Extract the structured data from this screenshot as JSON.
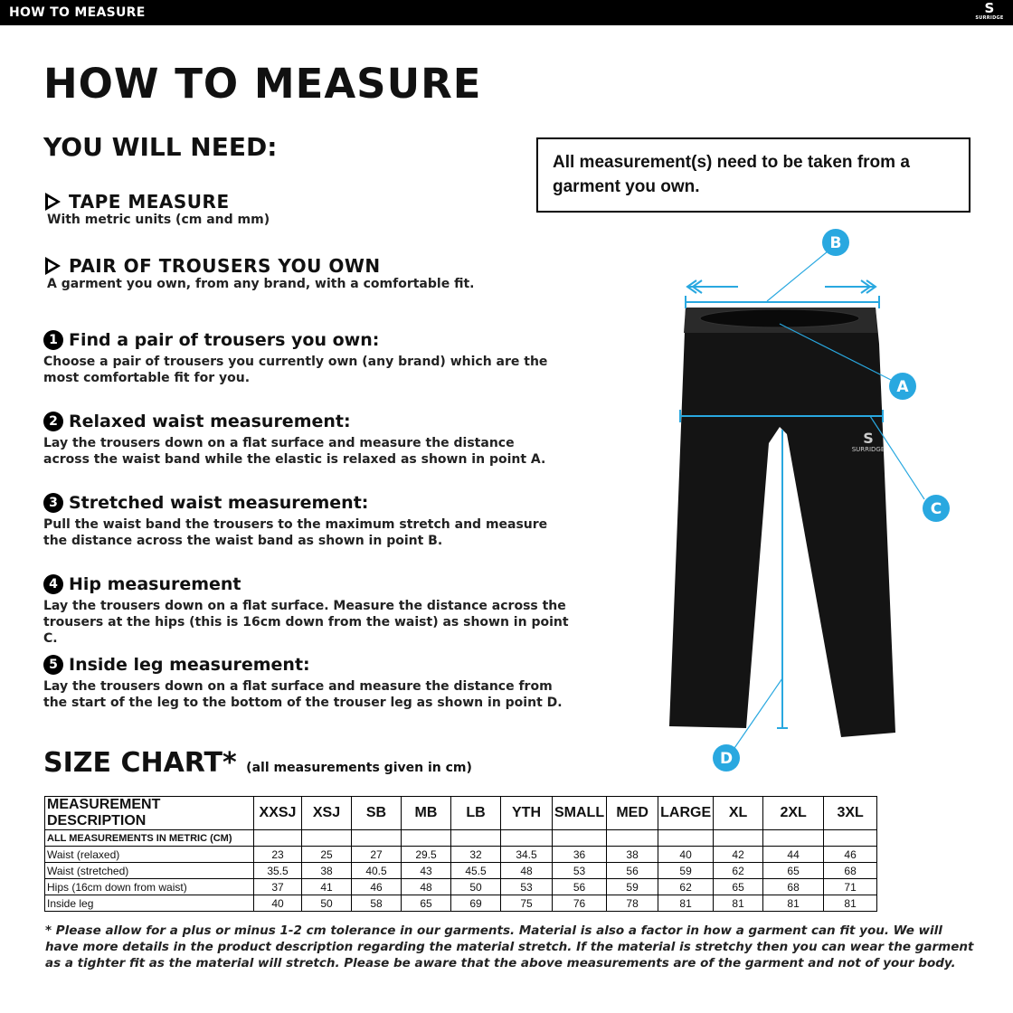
{
  "header": {
    "title": "HOW TO MEASURE",
    "logo_text": "SURRIDGE"
  },
  "page_title": "HOW TO MEASURE",
  "you_will_need": {
    "heading": "YOU WILL NEED:",
    "items": [
      {
        "title": "TAPE MEASURE",
        "sub": "With metric units (cm and mm)"
      },
      {
        "title": "PAIR OF TROUSERS YOU OWN",
        "sub": "A garment you own, from any brand, with a comfortable fit."
      }
    ]
  },
  "note": "All measurement(s) need to be taken from a garment you own.",
  "steps": [
    {
      "n": "1",
      "title": "Find a pair of trousers you own:",
      "text": "Choose a pair of trousers you currently own (any brand) which are the most comfortable fit for you."
    },
    {
      "n": "2",
      "title": "Relaxed waist measurement:",
      "text": "Lay the trousers down on a flat surface and measure the distance across the waist band while the elastic is relaxed as shown in point A."
    },
    {
      "n": "3",
      "title": "Stretched waist measurement:",
      "text": "Pull the waist band the trousers to the maximum stretch and measure the distance across the waist band as shown in point B."
    },
    {
      "n": "4",
      "title": "Hip measurement",
      "text": "Lay the trousers down on a flat surface. Measure the distance across the trousers at the hips (this is 16cm down from the waist) as shown in point C."
    },
    {
      "n": "5",
      "title": "Inside leg measurement:",
      "text": "Lay the trousers down on a flat surface and measure the distance from the start of the leg to the bottom of the trouser leg as shown in point D."
    }
  ],
  "diagram": {
    "labels": [
      "A",
      "B",
      "C",
      "D"
    ],
    "accent": "#29a8e0",
    "garment_logo": "SURRIDGE"
  },
  "size_chart": {
    "title": "SIZE CHART*",
    "subtitle": "(all measurements given in cm)",
    "header": [
      "MEASUREMENT DESCRIPTION",
      "XXSJ",
      "XSJ",
      "SB",
      "MB",
      "LB",
      "YTH",
      "SMALL",
      "MED",
      "LARGE",
      "XL",
      "2XL",
      "3XL"
    ],
    "section": "ALL MEASUREMENTS IN METRIC (CM)",
    "rows": [
      [
        "Waist (relaxed)",
        "23",
        "25",
        "27",
        "29.5",
        "32",
        "34.5",
        "36",
        "38",
        "40",
        "42",
        "44",
        "46"
      ],
      [
        "Waist (stretched)",
        "35.5",
        "38",
        "40.5",
        "43",
        "45.5",
        "48",
        "53",
        "56",
        "59",
        "62",
        "65",
        "68"
      ],
      [
        "Hips (16cm down from waist)",
        "37",
        "41",
        "46",
        "48",
        "50",
        "53",
        "56",
        "59",
        "62",
        "65",
        "68",
        "71"
      ],
      [
        "Inside leg",
        "40",
        "50",
        "58",
        "65",
        "69",
        "75",
        "76",
        "78",
        "81",
        "81",
        "81",
        "81"
      ]
    ]
  },
  "footnote": "* Please allow for a plus or minus 1-2 cm tolerance in our garments. Material is also a factor in how a garment can fit you. We will have more details in the product description regarding the material stretch.  If the material is stretchy then you can wear the garment as a tighter fit as the material will stretch.  Please be aware that the above measurements are of the garment and not of your body."
}
